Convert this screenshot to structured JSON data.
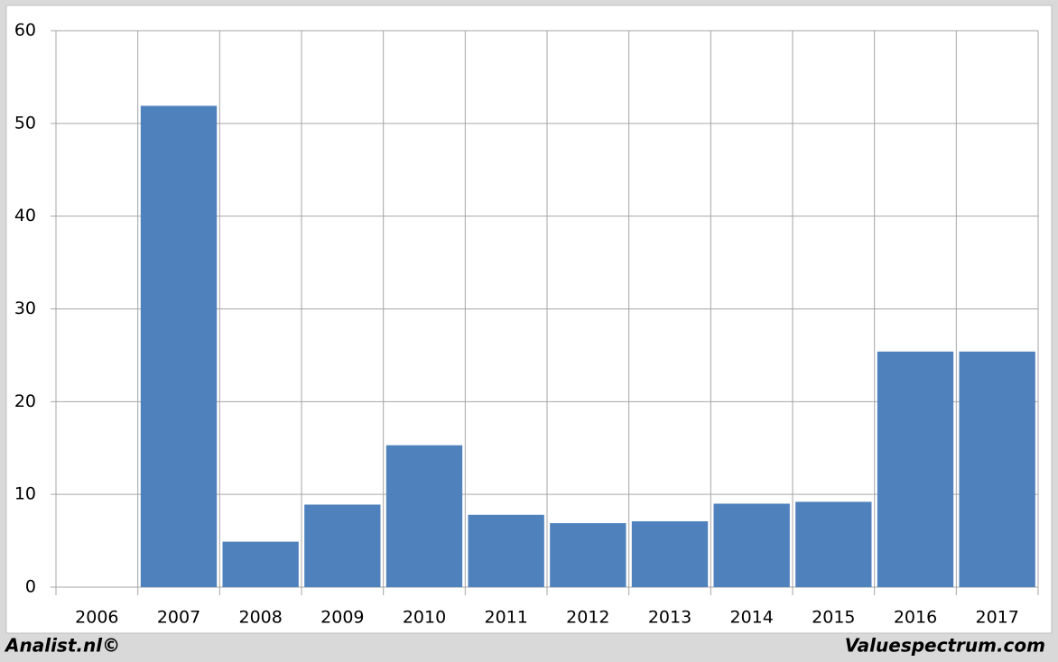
{
  "chart_data": {
    "type": "bar",
    "categories": [
      "2006",
      "2007",
      "2008",
      "2009",
      "2010",
      "2011",
      "2012",
      "2013",
      "2014",
      "2015",
      "2016",
      "2017"
    ],
    "values": [
      null,
      51.9,
      4.9,
      8.9,
      15.3,
      7.8,
      6.9,
      7.1,
      9.0,
      9.2,
      25.4,
      25.4
    ],
    "color": "#4f81bd",
    "ylim": [
      0,
      60
    ],
    "yticks": [
      0,
      10,
      20,
      30,
      40,
      50,
      60
    ],
    "grid": true
  },
  "footer": {
    "left": "Analist.nl©",
    "right": "Valuespectrum.com"
  }
}
